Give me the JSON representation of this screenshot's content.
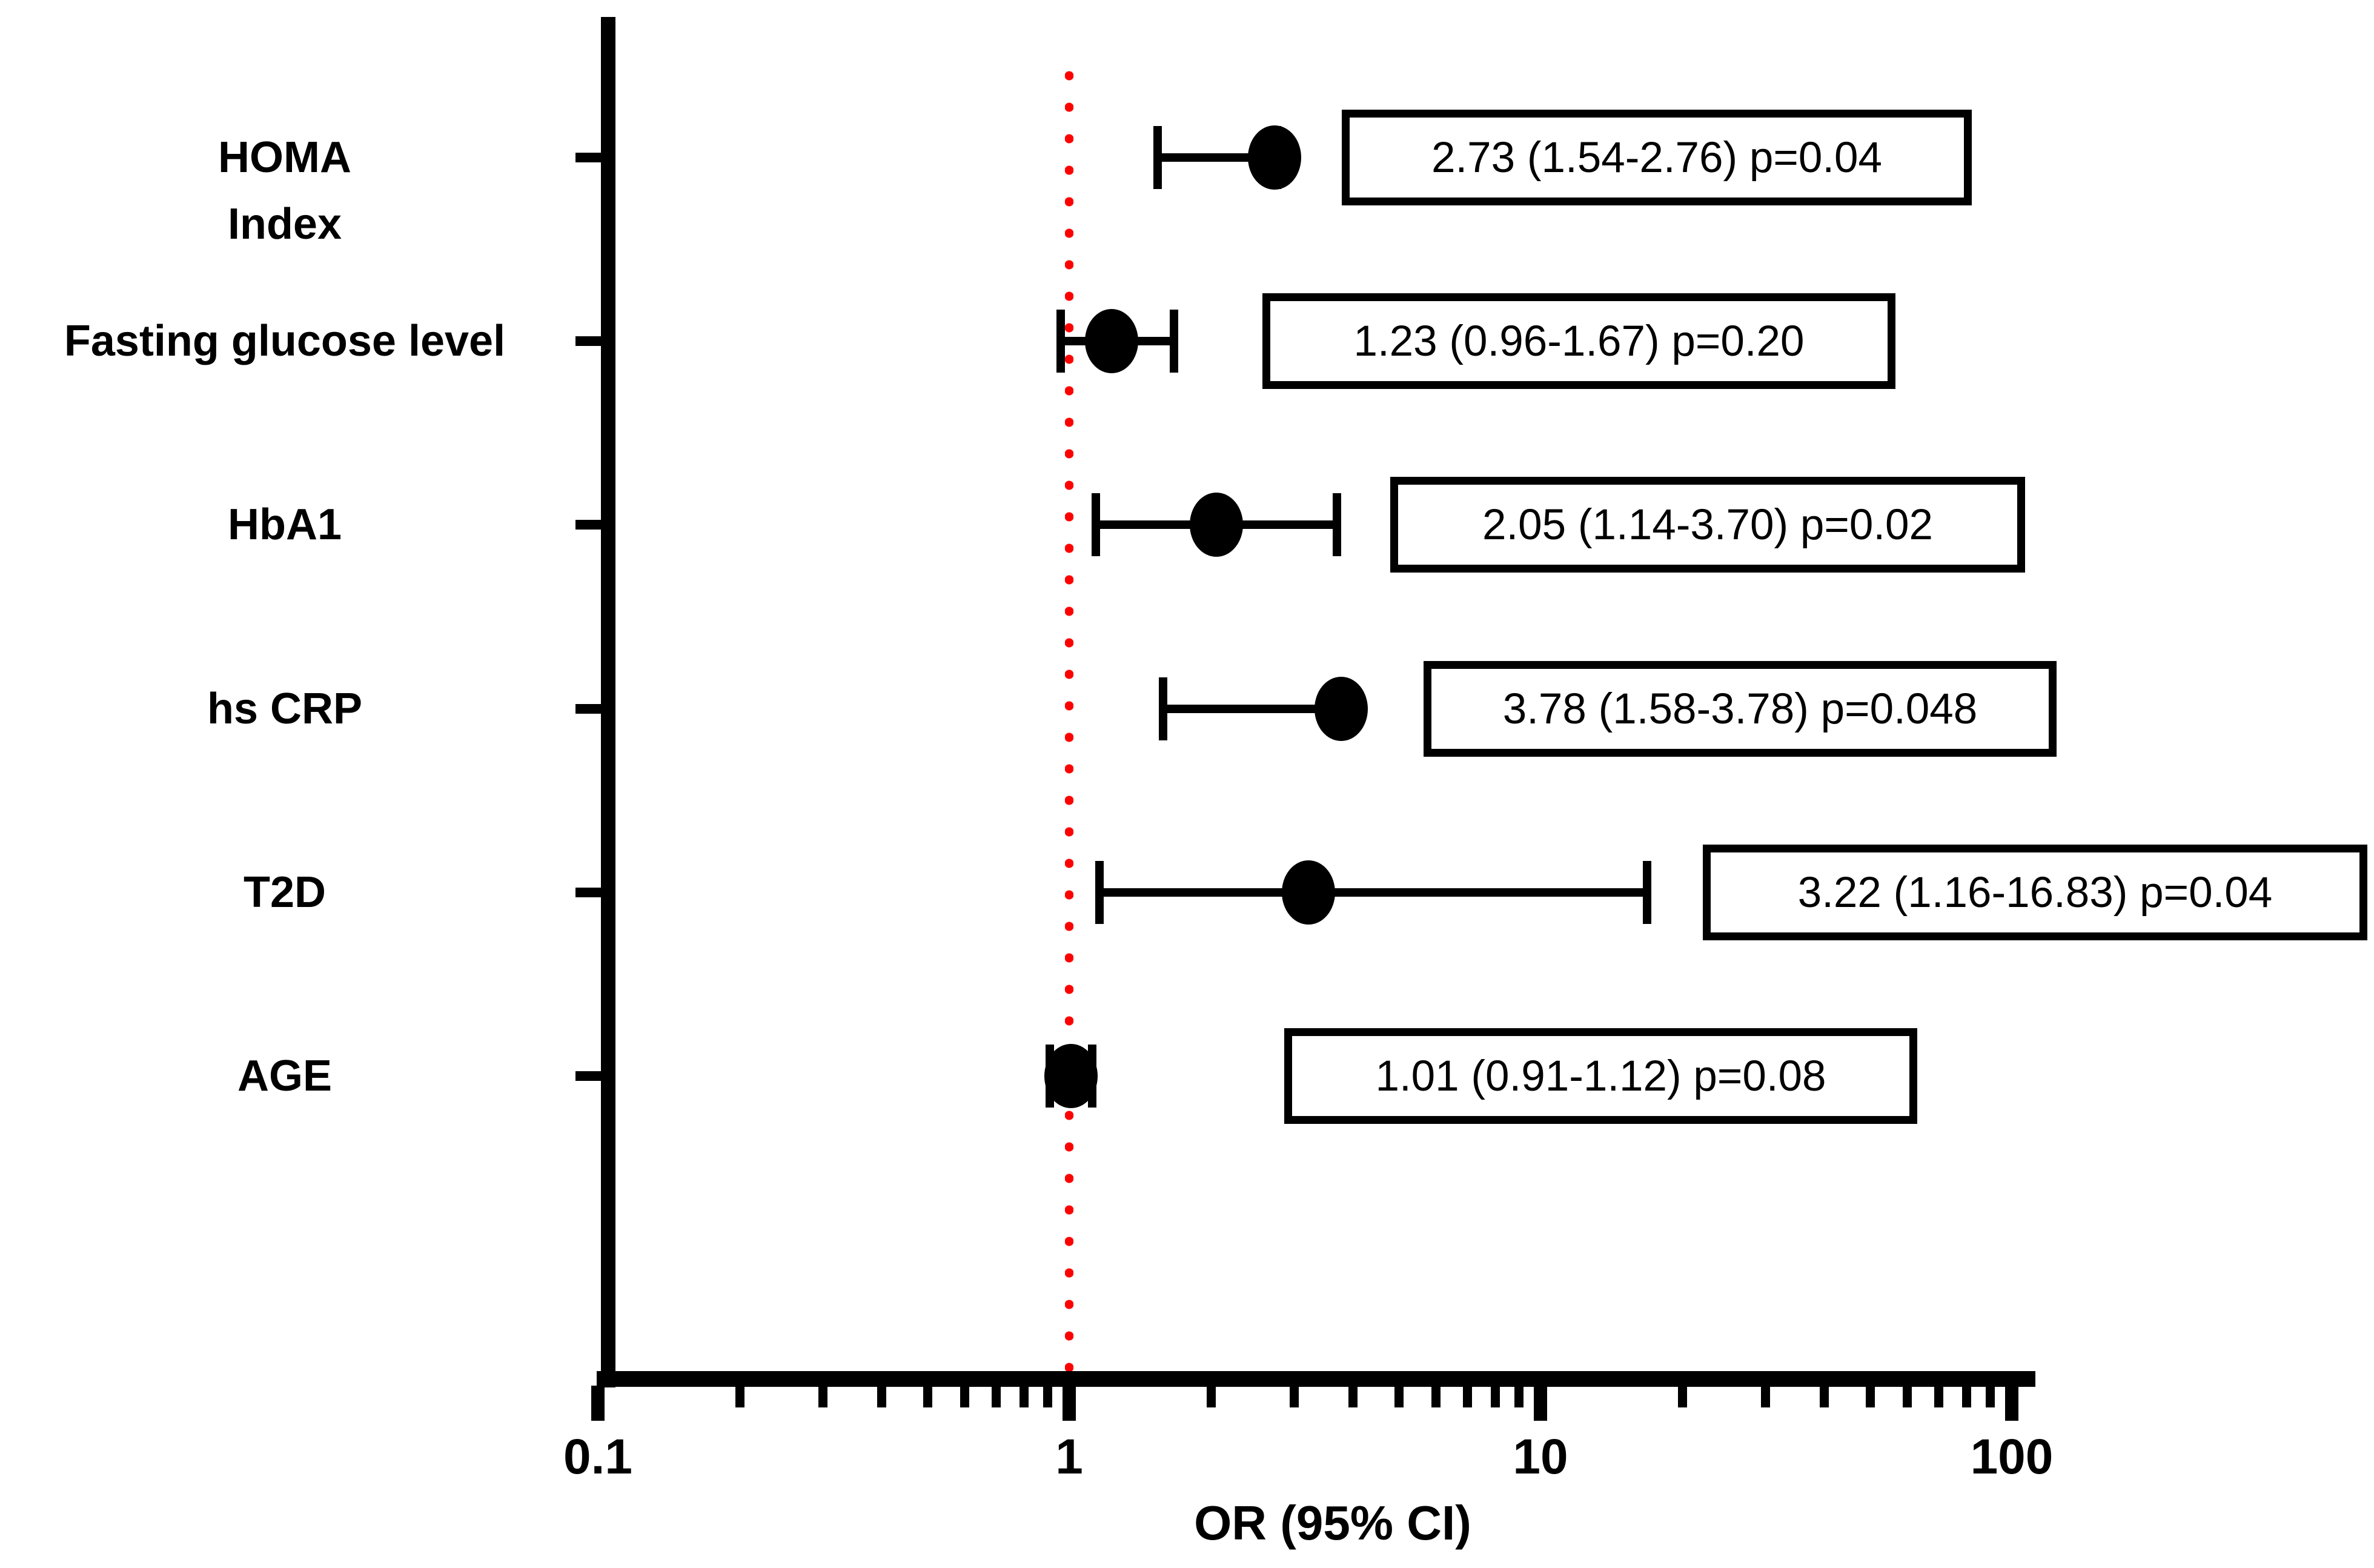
{
  "chart_data": {
    "type": "scatter",
    "subtype": "forest-plot",
    "title": "",
    "xlabel": "OR (95% CI)",
    "ylabel": "",
    "x_axis": {
      "scale": "log",
      "min": 0.1,
      "max": 100,
      "major_ticks": [
        0.1,
        1,
        10,
        100
      ],
      "tick_labels": [
        "0.1",
        "1",
        "10",
        "100"
      ],
      "grid": false
    },
    "reference_line": {
      "value": 1,
      "style": "dotted",
      "color": "#ff0000"
    },
    "marker_color": "#000000",
    "axis_color": "#000000",
    "rows": [
      {
        "label": "HOMA\nIndex",
        "or": 2.73,
        "ci_low": 1.54,
        "ci_high": 2.76,
        "p": "0.04",
        "annotation": "2.73 (1.54-2.76) p=0.04"
      },
      {
        "label": "Fasting glucose level",
        "or": 1.23,
        "ci_low": 0.96,
        "ci_high": 1.67,
        "p": "0.20",
        "annotation": "1.23 (0.96-1.67) p=0.20"
      },
      {
        "label": "HbA1",
        "or": 2.05,
        "ci_low": 1.14,
        "ci_high": 3.7,
        "p": "0.02",
        "annotation": "2.05 (1.14-3.70) p=0.02"
      },
      {
        "label": "hs CRP",
        "or": 3.78,
        "ci_low": 1.58,
        "ci_high": 3.78,
        "p": "0.048",
        "annotation": "3.78 (1.58-3.78) p=0.048"
      },
      {
        "label": "T2D",
        "or": 3.22,
        "ci_low": 1.16,
        "ci_high": 16.83,
        "p": "0.04",
        "annotation": "3.22 (1.16-16.83) p=0.04"
      },
      {
        "label": "AGE",
        "or": 1.01,
        "ci_low": 0.91,
        "ci_high": 1.12,
        "p": "0.08",
        "annotation": "1.01 (0.91-1.12) p=0.08"
      }
    ]
  }
}
